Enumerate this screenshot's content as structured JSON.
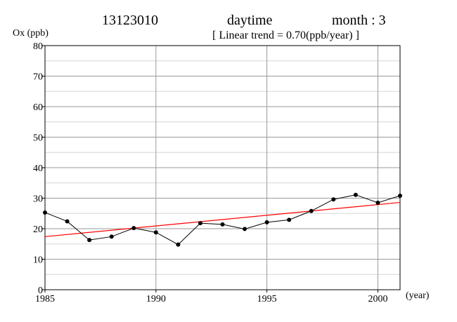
{
  "header": {
    "station": "13123010",
    "period": "daytime",
    "month": "month : 3",
    "trend": "[ Linear trend = 0.70(ppb/year) ]"
  },
  "chart_data": {
    "type": "line",
    "xlabel": "(year)",
    "ylabel": "Ox (ppb)",
    "xlim": [
      1985,
      2001
    ],
    "ylim": [
      0,
      80
    ],
    "x_ticks": [
      1985,
      1990,
      1995,
      2000
    ],
    "y_ticks": [
      0,
      10,
      20,
      30,
      40,
      50,
      60,
      70,
      80
    ],
    "grid": true,
    "series": [
      {
        "color": "#000000",
        "marker": "circle",
        "x": [
          1985,
          1986,
          1987,
          1988,
          1989,
          1990,
          1991,
          1992,
          1993,
          1994,
          1995,
          1996,
          1997,
          1998,
          1999,
          2000,
          2001
        ],
        "values": [
          25.3,
          22.4,
          16.3,
          17.4,
          20.2,
          18.8,
          14.8,
          21.8,
          21.4,
          19.9,
          22.1,
          22.9,
          25.8,
          29.6,
          31.1,
          28.5,
          30.8
        ]
      }
    ],
    "trend_line": {
      "color": "#ff0000",
      "slope": 0.7,
      "x": [
        1985,
        2001
      ],
      "values": [
        17.4,
        28.6
      ]
    }
  }
}
